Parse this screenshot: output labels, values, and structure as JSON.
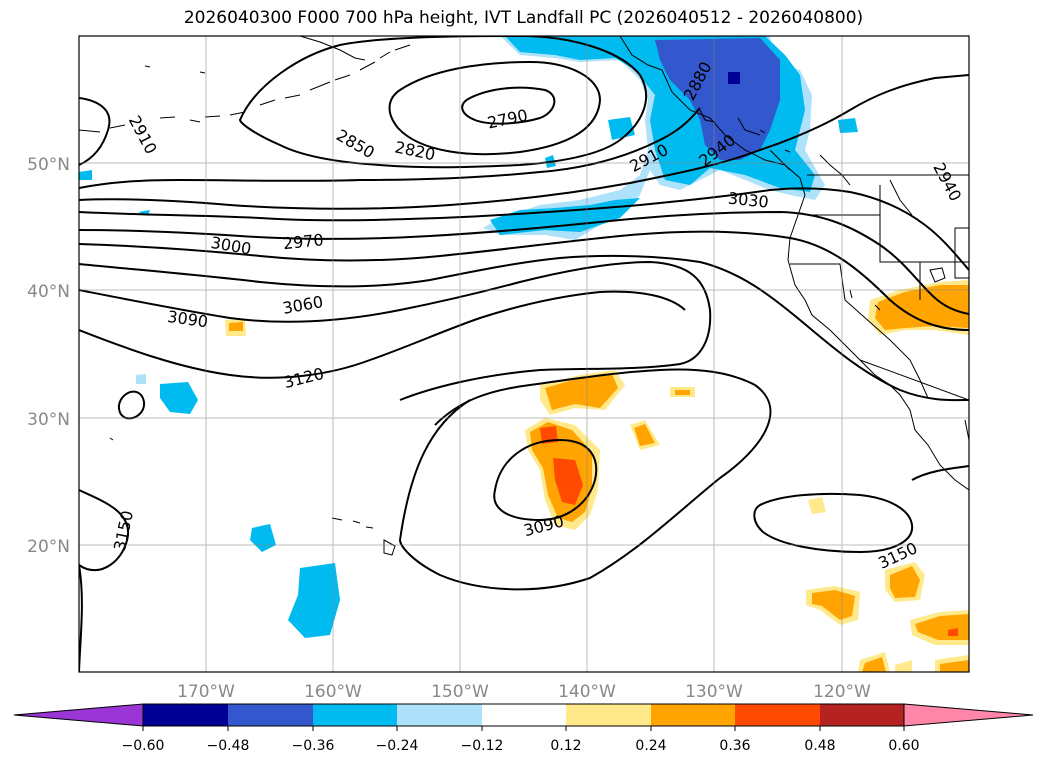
{
  "title": "2026040300 F000 700 hPa height, IVT Landfall PC (2026040512 - 2026040800)",
  "map": {
    "lat_labels": [
      "50°N",
      "40°N",
      "30°N",
      "20°N"
    ],
    "lon_labels": [
      "170°W",
      "160°W",
      "150°W",
      "140°W",
      "130°W",
      "120°W"
    ]
  },
  "contour_labels": [
    "2790",
    "2820",
    "2850",
    "2880",
    "2910",
    "2910",
    "2940",
    "2940",
    "2970",
    "3000",
    "3030",
    "3060",
    "3090",
    "3090",
    "3120",
    "3150",
    "3150"
  ],
  "colorbar": {
    "ticks": [
      "−0.60",
      "−0.48",
      "−0.36",
      "−0.24",
      "−0.12",
      "0.12",
      "0.24",
      "0.36",
      "0.48",
      "0.60"
    ],
    "colors": [
      "#9a36d6",
      "#000094",
      "#3357cc",
      "#00bbf0",
      "#aee2fa",
      "#ffffff",
      "#ffe98a",
      "#ffa400",
      "#ff4a00",
      "#b52222",
      "#ff86a8"
    ]
  }
}
